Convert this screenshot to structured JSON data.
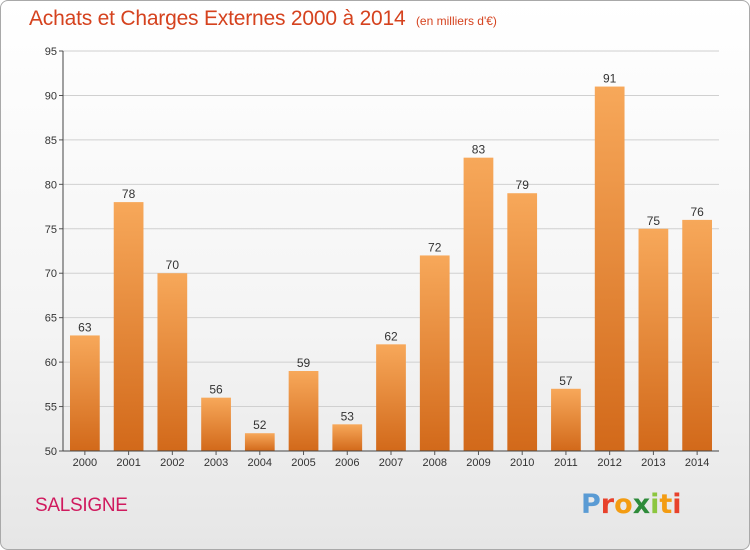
{
  "header": {
    "title": "Achats et Charges Externes 2000 à 2014",
    "subtitle": "(en milliers d'€)"
  },
  "footer": {
    "commune": "SALSIGNE",
    "logo_text": "Proxiti",
    "logo_colors": [
      "#5a9bd4",
      "#e8412b",
      "#f39c12",
      "#2e8b3a",
      "#8cc63f",
      "#f39c12",
      "#e8412b"
    ]
  },
  "chart_data": {
    "type": "bar",
    "title": "Achats et Charges Externes 2000 à 2014",
    "subtitle": "(en milliers d'€)",
    "xlabel": "",
    "ylabel": "",
    "categories": [
      "2000",
      "2001",
      "2002",
      "2003",
      "2004",
      "2005",
      "2006",
      "2007",
      "2008",
      "2009",
      "2010",
      "2011",
      "2012",
      "2013",
      "2014"
    ],
    "values": [
      63,
      78,
      70,
      56,
      52,
      59,
      53,
      62,
      72,
      83,
      79,
      57,
      91,
      75,
      76
    ],
    "ylim": [
      50,
      95
    ],
    "yticks": [
      50,
      55,
      60,
      65,
      70,
      75,
      80,
      85,
      90,
      95
    ],
    "grid": true,
    "legend": "none",
    "bar_color_top": "#f7a85a",
    "bar_color_bottom": "#d2691a",
    "grid_color": "#d0d0d0"
  }
}
